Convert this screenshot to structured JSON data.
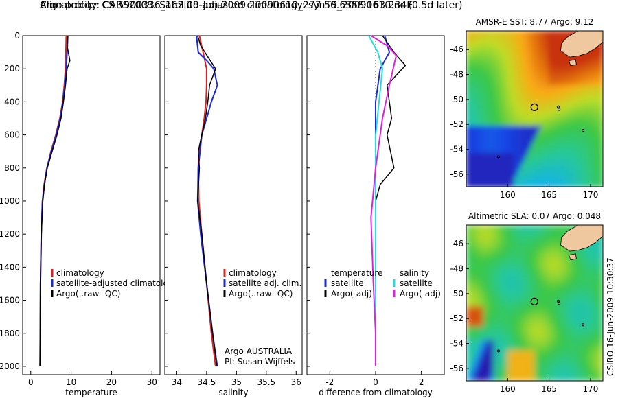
{
  "titles": {
    "line1": "Argo profile: CS 5900336_162 09-Jun-2009 20090610_277 50.635S 163.234E",
    "line2": "Climatology: CARS2009. Satellite-adjusted climatology: synTS_20090610.nc (0.5d later)"
  },
  "side_text": "CSIRO 16-Jun-2009 10:30:37",
  "colors": {
    "climatology": "#e02020",
    "satellite": "#1a2ad8",
    "argo": "#000000",
    "satellite_salinity": "#22dddd",
    "argo_adj_salinity": "#e020e0",
    "land": "#f0c8a0"
  },
  "chart_data": [
    {
      "type": "line",
      "panel": "temperature",
      "xlabel": "temperature",
      "ylabel": "",
      "xlim": [
        -2,
        32
      ],
      "ylim": [
        2050,
        0
      ],
      "xticks": [
        0,
        10,
        20,
        30
      ],
      "yticks": [
        0,
        200,
        400,
        600,
        800,
        1000,
        1200,
        1400,
        1600,
        1800,
        2000
      ],
      "legend": [
        "climatology",
        "satellite-adjusted climatology",
        "Argo(..raw -QC)"
      ],
      "series": [
        {
          "name": "climatology",
          "color": "#e02020",
          "width": 2,
          "x": [
            8.8,
            8.7,
            8.6,
            8.3,
            7.9,
            7.2,
            6.2,
            5.0,
            4.0,
            3.3,
            2.9,
            2.6,
            2.4,
            2.3
          ],
          "y": [
            0,
            100,
            200,
            300,
            400,
            500,
            600,
            700,
            800,
            900,
            1000,
            1200,
            1500,
            2000
          ]
        },
        {
          "name": "satellite-adjusted climatology",
          "color": "#1a2ad8",
          "width": 2,
          "x": [
            9.2,
            9.0,
            8.8,
            8.4,
            8.0,
            7.3,
            6.3,
            5.1,
            4.0,
            3.4,
            2.9,
            2.6,
            2.4,
            2.3
          ],
          "y": [
            0,
            100,
            200,
            300,
            400,
            500,
            600,
            700,
            800,
            900,
            1000,
            1200,
            1500,
            2000
          ]
        },
        {
          "name": "Argo(..raw -QC)",
          "color": "#000000",
          "width": 1.5,
          "x": [
            9.1,
            9.0,
            9.7,
            9.0,
            8.6,
            8.1,
            7.5,
            6.5,
            5.3,
            4.1,
            3.4,
            3.0,
            2.6,
            2.4,
            2.3
          ],
          "y": [
            0,
            60,
            150,
            200,
            300,
            400,
            500,
            600,
            700,
            800,
            900,
            1000,
            1200,
            1500,
            2000
          ]
        }
      ]
    },
    {
      "type": "line",
      "panel": "salinity",
      "xlabel": "salinity",
      "ylabel": "",
      "xlim": [
        33.8,
        36.1
      ],
      "ylim": [
        2050,
        0
      ],
      "xticks": [
        34,
        34.5,
        35,
        35.5,
        36
      ],
      "legend": [
        "climatology",
        "satellite adj. clim.",
        "Argo(..raw -QC)"
      ],
      "annotation": [
        "Argo AUSTRALIA",
        "PI: Susan Wijffels"
      ],
      "series": [
        {
          "name": "climatology",
          "color": "#e02020",
          "width": 2,
          "x": [
            34.38,
            34.44,
            34.5,
            34.5,
            34.49,
            34.46,
            34.42,
            34.37,
            34.36,
            34.37,
            34.42,
            34.5,
            34.58,
            34.65
          ],
          "y": [
            0,
            100,
            200,
            300,
            400,
            500,
            600,
            700,
            800,
            1000,
            1200,
            1500,
            1800,
            2000
          ]
        },
        {
          "name": "satellite adj. clim.",
          "color": "#1a2ad8",
          "width": 2,
          "x": [
            34.33,
            34.36,
            34.5,
            34.62,
            34.68,
            34.58,
            34.5,
            34.42,
            34.36,
            34.35,
            34.4,
            34.5,
            34.6,
            34.68
          ],
          "y": [
            0,
            100,
            150,
            200,
            300,
            400,
            500,
            600,
            800,
            1000,
            1200,
            1500,
            1800,
            2000
          ]
        },
        {
          "name": "Argo(..raw -QC)",
          "color": "#000000",
          "width": 1.5,
          "x": [
            34.35,
            34.4,
            34.65,
            34.55,
            34.52,
            34.48,
            34.42,
            34.36,
            34.38,
            34.35,
            34.42,
            34.5,
            34.6,
            34.67
          ],
          "y": [
            0,
            60,
            200,
            300,
            400,
            500,
            600,
            700,
            800,
            1000,
            1200,
            1500,
            1800,
            2000
          ]
        }
      ]
    },
    {
      "type": "line",
      "panel": "difference",
      "xlabel": "difference from climatology",
      "ylabel": "",
      "xlim": [
        -3,
        3
      ],
      "ylim": [
        2050,
        0
      ],
      "xticks": [
        -2,
        0,
        2
      ],
      "legend": [
        "temperature",
        "satellite",
        "Argo(-adj)",
        "salinity",
        "satellite",
        "Argo(-adj)"
      ],
      "series": [
        {
          "name": "temperature satellite",
          "color": "#1a2ad8",
          "width": 2,
          "x": [
            0.4,
            0.6,
            0.2,
            0.0,
            0.0,
            0.0,
            0.0,
            0.0
          ],
          "y": [
            0,
            100,
            200,
            400,
            800,
            1200,
            1600,
            2000
          ]
        },
        {
          "name": "temperature Argo(-adj)",
          "color": "#000000",
          "width": 1.5,
          "x": [
            0.3,
            0.8,
            1.3,
            0.5,
            0.7,
            0.5,
            0.8,
            0.2,
            0.0,
            0.0,
            0.0,
            0.0
          ],
          "y": [
            0,
            100,
            180,
            300,
            500,
            600,
            800,
            900,
            1000,
            1200,
            1600,
            2000
          ]
        },
        {
          "name": "salinity satellite",
          "color": "#22dddd",
          "width": 2,
          "x": [
            -0.3,
            0.1,
            0.3,
            0.0,
            0.0,
            0.0,
            0.0
          ],
          "y": [
            0,
            100,
            200,
            600,
            1000,
            1500,
            2000
          ]
        },
        {
          "name": "salinity Argo(-adj)",
          "color": "#e020e0",
          "width": 2,
          "x": [
            -0.2,
            0.5,
            0.9,
            0.6,
            0.3,
            0.0,
            -0.2,
            -0.1,
            0.0,
            0.0
          ],
          "y": [
            0,
            60,
            120,
            300,
            500,
            800,
            1100,
            1500,
            1800,
            2000
          ]
        }
      ]
    },
    {
      "type": "heatmap",
      "panel": "amsr-sst-map",
      "title": "AMSR-E SST: 8.77 Argo: 9.12",
      "xlim": [
        155,
        171.5
      ],
      "ylim": [
        -57,
        -44.5
      ],
      "xticks": [
        160,
        165,
        170
      ],
      "yticks": [
        -46,
        -48,
        -50,
        -52,
        -54,
        -56
      ],
      "argo_position": {
        "lon": 163.234,
        "lat": -50.635
      }
    },
    {
      "type": "heatmap",
      "panel": "altimetric-sla-map",
      "title": "Altimetric SLA: 0.07 Argo: 0.048",
      "xlim": [
        155,
        171.5
      ],
      "ylim": [
        -57,
        -44.5
      ],
      "xticks": [
        160,
        165,
        170
      ],
      "yticks": [
        -46,
        -48,
        -50,
        -52,
        -54,
        -56
      ],
      "argo_position": {
        "lon": 163.234,
        "lat": -50.635
      }
    }
  ]
}
